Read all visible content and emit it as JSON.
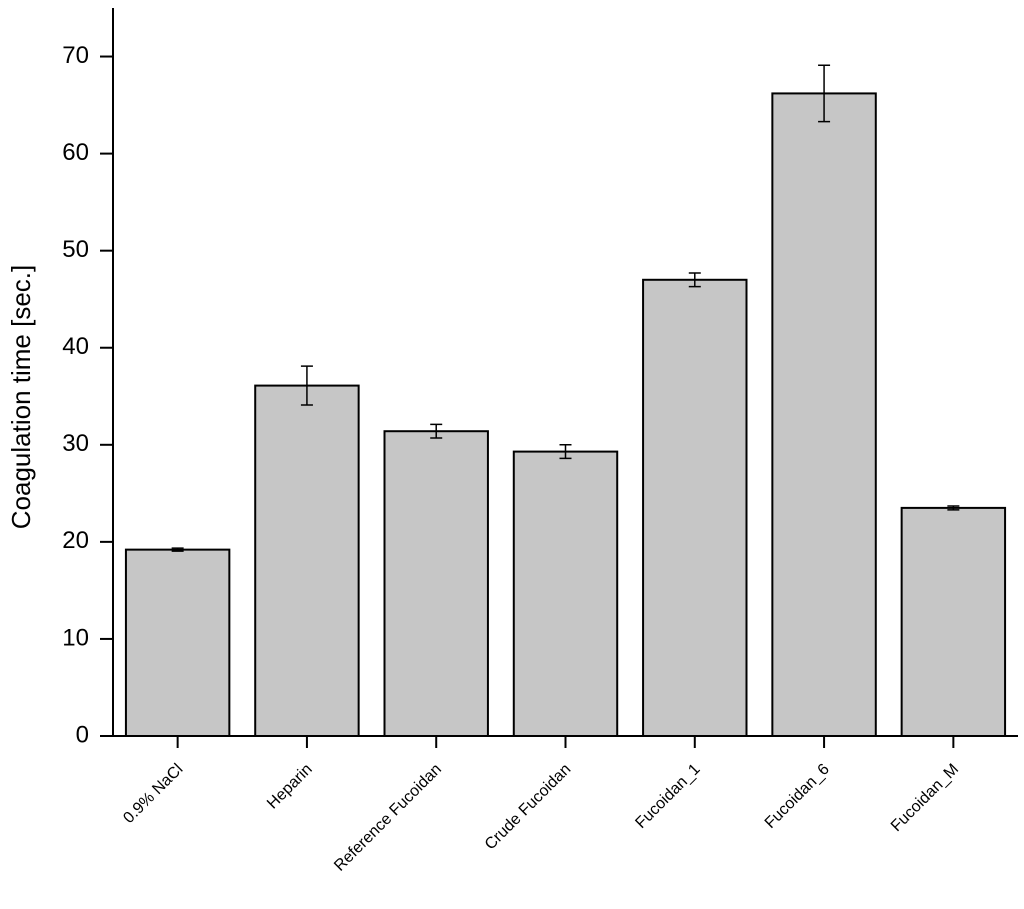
{
  "chart_data": {
    "type": "bar",
    "y_label": "Coagulation time [sec.]",
    "categories": [
      "0.9% NaCl",
      "Heparin",
      "Reference Fucoidan",
      "Crude Fucoidan",
      "Fucoidan_1",
      "Fucoidan_6",
      "Fucoidan_M"
    ],
    "values": [
      19.2,
      36.1,
      31.4,
      29.3,
      47.0,
      66.2,
      23.5
    ],
    "errors": [
      0.15,
      2.0,
      0.7,
      0.7,
      0.7,
      2.9,
      0.2
    ],
    "color": "#c6c6c6",
    "ylim": [
      0,
      75
    ],
    "yticks": [
      0,
      10,
      20,
      30,
      40,
      50,
      60,
      70
    ]
  }
}
